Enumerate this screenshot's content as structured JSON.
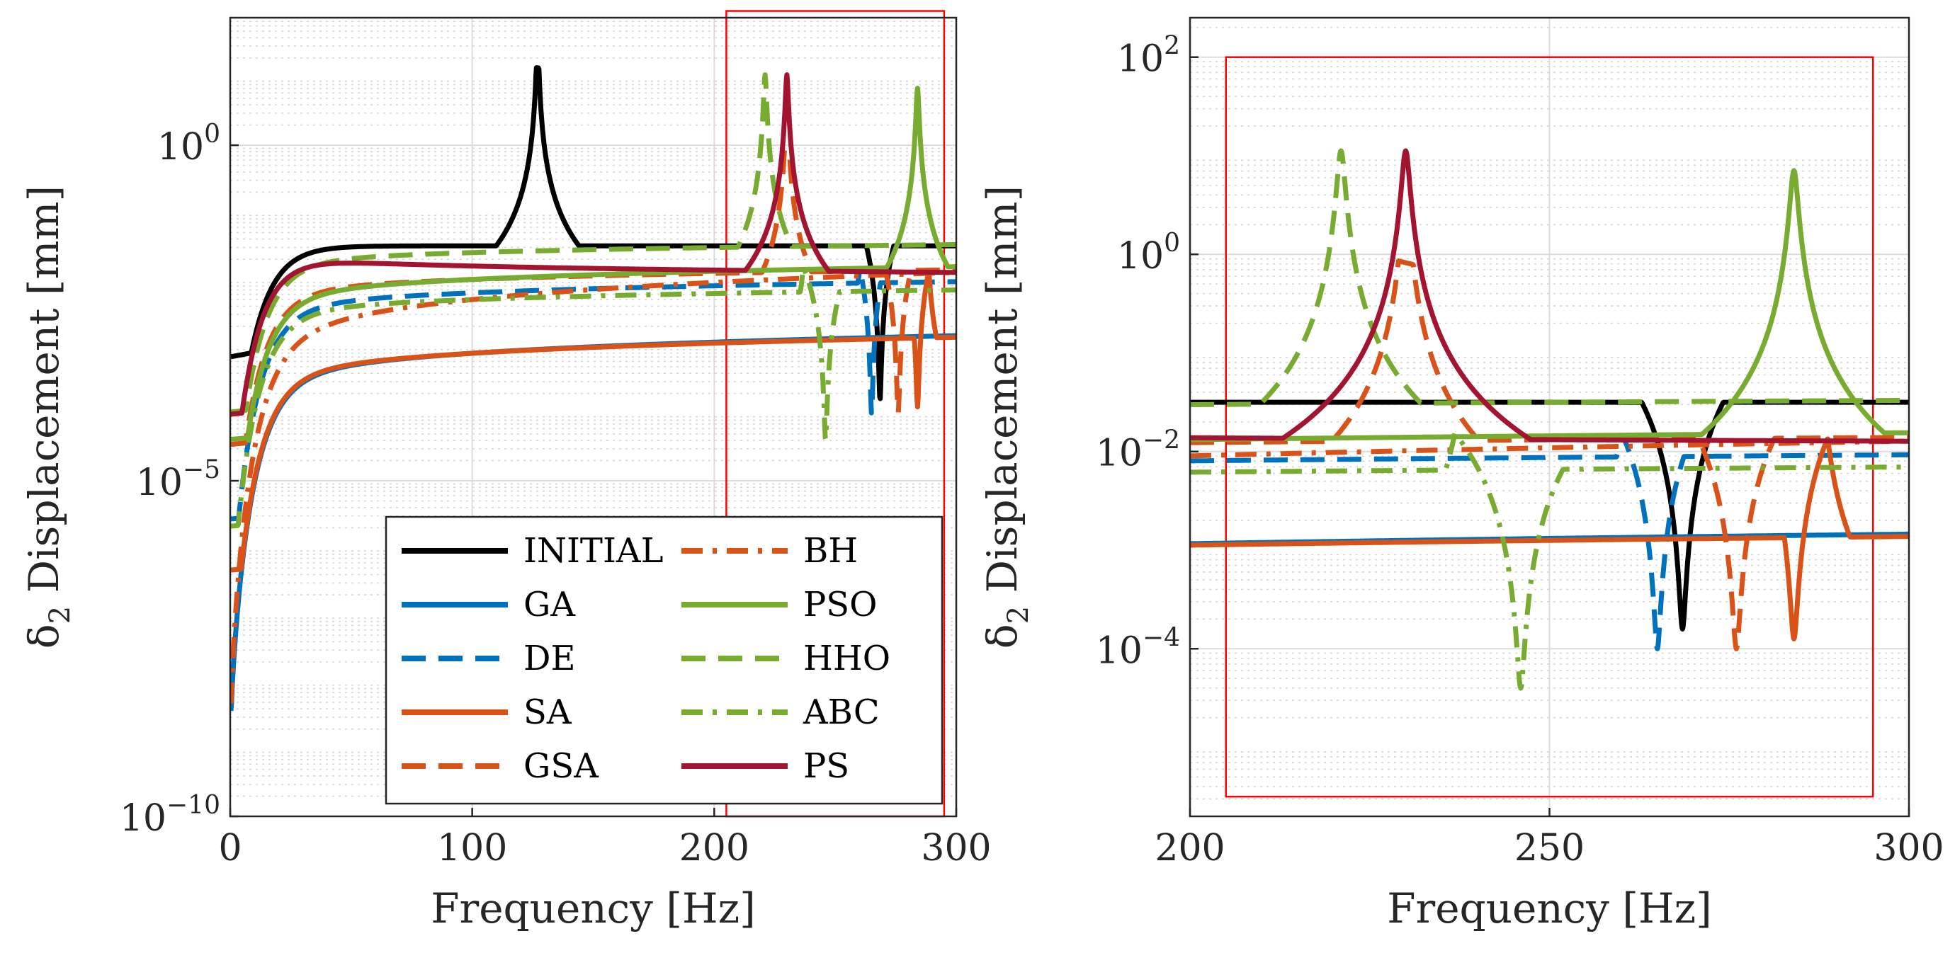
{
  "chart_data": [
    {
      "type": "line",
      "xscale": "linear",
      "yscale": "log",
      "xlabel": "Frequency [Hz]",
      "ylabel": "δ2 Displacement [mm]",
      "ylabel_symbol": "δ",
      "ylabel_sub": "2",
      "ylabel_rest": " Displacement [mm]",
      "xlim": [
        0,
        300
      ],
      "ylim_exp": [
        -10,
        1.9
      ],
      "xticks": [
        {
          "value": 0,
          "label": "0"
        },
        {
          "value": 100,
          "label": "100"
        },
        {
          "value": 200,
          "label": "200"
        },
        {
          "value": 300,
          "label": "300"
        }
      ],
      "yticks": [
        {
          "exp": -10,
          "base": "10",
          "sup": "−10"
        },
        {
          "exp": -5,
          "base": "10",
          "sup": "−5"
        },
        {
          "exp": 0,
          "base": "10",
          "sup": "0"
        }
      ],
      "grid": true,
      "zoom_box": {
        "x": [
          205,
          295
        ],
        "y_exp": [
          -10,
          2
        ]
      },
      "legend": {
        "location": "lower-right",
        "columns": 2
      }
    },
    {
      "type": "line",
      "xscale": "linear",
      "yscale": "log",
      "xlabel": "Frequency [Hz]",
      "ylabel": "δ2 Displacement [mm]",
      "ylabel_symbol": "δ",
      "ylabel_sub": "2",
      "ylabel_rest": " Displacement [mm]",
      "xlim": [
        200,
        300
      ],
      "ylim_exp": [
        -5.7,
        2.4
      ],
      "xticks": [
        {
          "value": 200,
          "label": "200"
        },
        {
          "value": 250,
          "label": "250"
        },
        {
          "value": 300,
          "label": "300"
        }
      ],
      "yticks": [
        {
          "exp": -4,
          "base": "10",
          "sup": "−4"
        },
        {
          "exp": -2,
          "base": "10",
          "sup": "−2"
        },
        {
          "exp": 0,
          "base": "10",
          "sup": "0"
        },
        {
          "exp": 2,
          "base": "10",
          "sup": "2"
        }
      ],
      "grid": true,
      "zoom_box": {
        "x": [
          205,
          295
        ],
        "y_exp": [
          -5.5,
          2
        ]
      }
    }
  ],
  "series": [
    {
      "name": "INITIAL",
      "color": "#000000",
      "dash": "solid",
      "model": {
        "base": -1.5,
        "slope": 0.0,
        "peaks": [
          [
            127,
            1.6,
            0.4
          ]
        ],
        "dips": [
          [
            268.5,
            -3.8,
            0.35
          ]
        ],
        "peaks2": [
          [
            270,
            -1.7,
            0.35
          ]
        ]
      }
    },
    {
      "name": "GA",
      "color": "#0072BD",
      "dash": "solid",
      "model": {
        "base": -3.1,
        "slope": 0.55,
        "peaks": [],
        "dips": []
      }
    },
    {
      "name": "DE",
      "color": "#0072BD",
      "dash": "dashed",
      "model": {
        "base": -2.2,
        "slope": 0.35,
        "peaks": [
          [
            263,
            -0.4,
            0.5
          ]
        ],
        "dips": [
          [
            265,
            -4.0,
            0.35
          ]
        ]
      }
    },
    {
      "name": "SA",
      "color": "#D95319",
      "dash": "solid",
      "model": {
        "base": -3.1,
        "slope": 0.5,
        "peaks": [],
        "dips": [
          [
            284,
            -3.9,
            0.4
          ]
        ],
        "peaks2": [
          [
            287.5,
            -1.0,
            0.45
          ]
        ]
      }
    },
    {
      "name": "GSA",
      "color": "#D95319",
      "dash": "dashed",
      "model": {
        "base": -2.0,
        "slope": 0.3,
        "peaks": [
          [
            230,
            0.6,
            0.5
          ]
        ],
        "dips": [
          [
            276,
            -4.0,
            0.4
          ]
        ]
      }
    },
    {
      "name": "BH",
      "color": "#D95319",
      "dash": "dashdot",
      "model": {
        "base": -2.3,
        "slope": 0.85,
        "peaks": [],
        "dips": []
      }
    },
    {
      "name": "PSO",
      "color": "#77AC30",
      "dash": "solid",
      "model": {
        "base": -2.0,
        "slope": 0.4,
        "peaks": [
          [
            284,
            0.85,
            0.5
          ]
        ],
        "dips": []
      }
    },
    {
      "name": "HHO",
      "color": "#77AC30",
      "dash": "dashed",
      "model": {
        "base": -1.6,
        "slope": 0.25,
        "peaks": [
          [
            221,
            1.05,
            0.5
          ]
        ],
        "dips": []
      }
    },
    {
      "name": "ABC",
      "color": "#77AC30",
      "dash": "dashdot",
      "model": {
        "base": -2.3,
        "slope": 0.3,
        "peaks": [
          [
            239,
            -0.5,
            0.45
          ]
        ],
        "dips": [
          [
            246,
            -4.4,
            0.4
          ]
        ]
      }
    },
    {
      "name": "PS",
      "color": "#A2142F",
      "dash": "solid",
      "model": {
        "base": -1.8,
        "slope": -0.2,
        "peaks": [
          [
            230,
            1.05,
            0.5
          ]
        ],
        "dips": []
      }
    }
  ]
}
